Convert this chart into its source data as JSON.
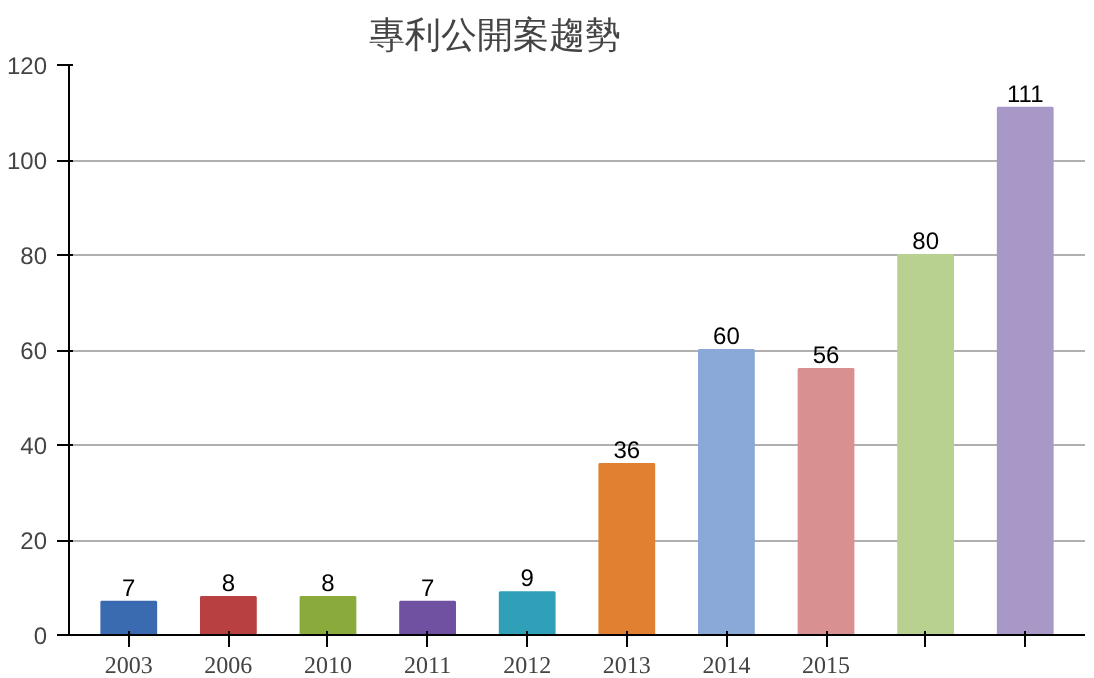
{
  "chart_data": {
    "type": "bar",
    "title": "專利公開案趨勢",
    "categories": [
      "2003",
      "2006",
      "2010",
      "2011",
      "2012",
      "2013",
      "2014",
      "2015",
      null,
      null
    ],
    "values": [
      7,
      8,
      8,
      7,
      9,
      36,
      60,
      56,
      80,
      111
    ],
    "colors": [
      "#3a6ab0",
      "#b84040",
      "#8aab3c",
      "#7050a0",
      "#30a0b8",
      "#e08030",
      "#8aa8d8",
      "#d89090",
      "#b8d090",
      "#a898c8"
    ],
    "ylim": [
      0,
      120
    ],
    "yticks": [
      0,
      20,
      40,
      60,
      80,
      100,
      120
    ],
    "grid": "y",
    "data_labels": true
  }
}
